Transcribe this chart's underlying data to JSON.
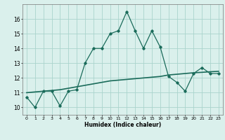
{
  "title": "",
  "xlabel": "Humidex (Indice chaleur)",
  "x": [
    0,
    1,
    2,
    3,
    4,
    5,
    6,
    7,
    8,
    9,
    10,
    11,
    12,
    13,
    14,
    15,
    16,
    17,
    18,
    19,
    20,
    21,
    22,
    23
  ],
  "y_curve": [
    10.7,
    10.0,
    11.1,
    11.1,
    10.1,
    11.1,
    11.2,
    13.0,
    14.0,
    14.0,
    15.0,
    15.2,
    16.5,
    15.2,
    14.0,
    15.2,
    14.1,
    12.1,
    11.7,
    11.1,
    12.3,
    12.7,
    12.3,
    12.3
  ],
  "y_trend": [
    11.0,
    11.05,
    11.1,
    11.15,
    11.2,
    11.3,
    11.4,
    11.5,
    11.6,
    11.7,
    11.8,
    11.85,
    11.9,
    11.95,
    12.0,
    12.05,
    12.1,
    12.2,
    12.25,
    12.3,
    12.35,
    12.38,
    12.42,
    12.45
  ],
  "line_color": "#1a6b5a",
  "trend_color": "#1a6b5a",
  "bg_color": "#daf0ec",
  "grid_color": "#aad4cc",
  "ylim": [
    9.5,
    17.0
  ],
  "xlim": [
    -0.5,
    23.5
  ],
  "yticks": [
    10,
    11,
    12,
    13,
    14,
    15,
    16
  ],
  "xticks": [
    0,
    1,
    2,
    3,
    4,
    5,
    6,
    7,
    8,
    9,
    10,
    11,
    12,
    13,
    14,
    15,
    16,
    17,
    18,
    19,
    20,
    21,
    22,
    23
  ]
}
